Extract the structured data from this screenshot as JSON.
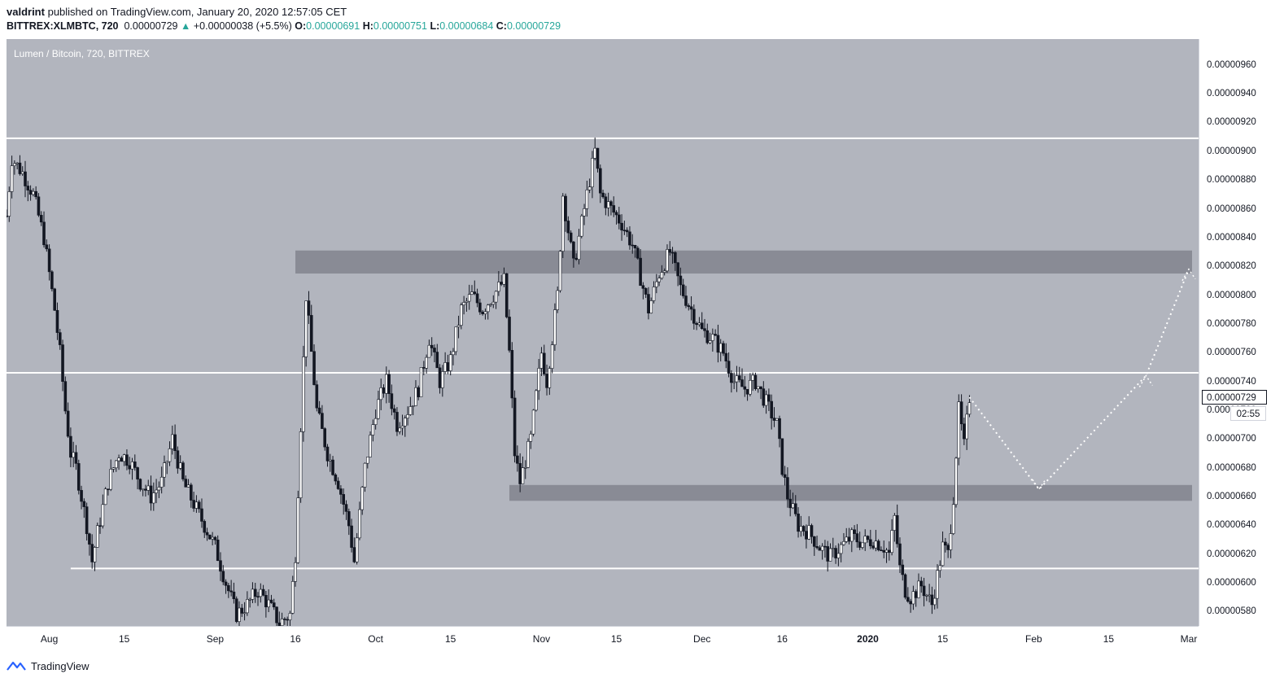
{
  "header": {
    "author": "valdrint",
    "published_text": "published on TradingView.com, January 20, 2020 12:57:05 CET",
    "symbol": "BITTREX:XLMBTC, 720",
    "last_price": "0.00000729",
    "change_arrow": "▲",
    "change": "+0.00000038 (+5.5%)",
    "o_label": "O:",
    "o_value": "0.00000691",
    "h_label": "H:",
    "h_value": "0.00000751",
    "l_label": "L:",
    "l_value": "0.00000684",
    "c_label": "C:",
    "c_value": "0.00000729"
  },
  "pane_title": "Lumen / Bitcoin, 720, BITTREX",
  "price_tag": "0.00000729",
  "countdown": "02:55",
  "footer_brand": "TradingView",
  "colors": {
    "background": "#b2b5be",
    "candles": "#131722",
    "levels": "#ffffff",
    "zones": "#7b7e87",
    "up_text": "#26a69a"
  },
  "chart_data": {
    "type": "candlestick",
    "title": "Lumen / Bitcoin, 720, BITTREX",
    "xlabel": "",
    "ylabel": "",
    "x_range": [
      "2019-07-24",
      "2020-03-01"
    ],
    "ylim": [
      5.7e-06,
      9.78e-06
    ],
    "x_ticks": [
      {
        "label": "Aug",
        "date": "2019-08-01"
      },
      {
        "label": "15",
        "date": "2019-08-15"
      },
      {
        "label": "Sep",
        "date": "2019-09-01"
      },
      {
        "label": "16",
        "date": "2019-09-16"
      },
      {
        "label": "Oct",
        "date": "2019-10-01"
      },
      {
        "label": "15",
        "date": "2019-10-15"
      },
      {
        "label": "Nov",
        "date": "2019-11-01"
      },
      {
        "label": "15",
        "date": "2019-11-15"
      },
      {
        "label": "Dec",
        "date": "2019-12-01"
      },
      {
        "label": "16",
        "date": "2019-12-16"
      },
      {
        "label": "2020",
        "date": "2020-01-01"
      },
      {
        "label": "15",
        "date": "2020-01-15"
      },
      {
        "label": "Feb",
        "date": "2020-02-01"
      },
      {
        "label": "15",
        "date": "2020-02-15"
      },
      {
        "label": "Mar",
        "date": "2020-03-01"
      }
    ],
    "y_ticks": [
      "0.00000960",
      "0.00000940",
      "0.00000920",
      "0.00000900",
      "0.00000880",
      "0.00000860",
      "0.00000840",
      "0.00000820",
      "0.00000800",
      "0.00000780",
      "0.00000760",
      "0.00000740",
      "0.00000720",
      "0.00000700",
      "0.00000680",
      "0.00000660",
      "0.00000640",
      "0.00000620",
      "0.00000600",
      "0.00000580"
    ],
    "price_path": [
      [
        "2019-07-24",
        8.55e-06
      ],
      [
        "2019-07-25",
        8.95e-06
      ],
      [
        "2019-07-27",
        8.85e-06
      ],
      [
        "2019-07-29",
        8.7e-06
      ],
      [
        "2019-07-31",
        8.4e-06
      ],
      [
        "2019-08-02",
        7.9e-06
      ],
      [
        "2019-08-03",
        7.6e-06
      ],
      [
        "2019-08-04",
        7.2e-06
      ],
      [
        "2019-08-05",
        6.9e-06
      ],
      [
        "2019-08-06",
        6.8e-06
      ],
      [
        "2019-08-08",
        6.4e-06
      ],
      [
        "2019-08-09",
        6.15e-06
      ],
      [
        "2019-08-10",
        6.35e-06
      ],
      [
        "2019-08-12",
        6.7e-06
      ],
      [
        "2019-08-14",
        6.9e-06
      ],
      [
        "2019-08-16",
        6.85e-06
      ],
      [
        "2019-08-18",
        6.7e-06
      ],
      [
        "2019-08-20",
        6.6e-06
      ],
      [
        "2019-08-22",
        6.7e-06
      ],
      [
        "2019-08-24",
        7e-06
      ],
      [
        "2019-08-26",
        6.7e-06
      ],
      [
        "2019-08-28",
        6.55e-06
      ],
      [
        "2019-08-30",
        6.4e-06
      ],
      [
        "2019-09-01",
        6.25e-06
      ],
      [
        "2019-09-03",
        6e-06
      ],
      [
        "2019-09-05",
        5.78e-06
      ],
      [
        "2019-09-07",
        5.85e-06
      ],
      [
        "2019-09-09",
        5.95e-06
      ],
      [
        "2019-09-11",
        5.85e-06
      ],
      [
        "2019-09-13",
        5.72e-06
      ],
      [
        "2019-09-15",
        5.78e-06
      ],
      [
        "2019-09-16",
        6.2e-06
      ],
      [
        "2019-09-17",
        7.1e-06
      ],
      [
        "2019-09-18",
        8e-06
      ],
      [
        "2019-09-19",
        7.6e-06
      ],
      [
        "2019-09-20",
        7.2e-06
      ],
      [
        "2019-09-22",
        6.9e-06
      ],
      [
        "2019-09-24",
        6.7e-06
      ],
      [
        "2019-09-26",
        6.4e-06
      ],
      [
        "2019-09-27",
        6.15e-06
      ],
      [
        "2019-09-29",
        6.8e-06
      ],
      [
        "2019-10-01",
        7.2e-06
      ],
      [
        "2019-10-03",
        7.4e-06
      ],
      [
        "2019-10-05",
        7.1e-06
      ],
      [
        "2019-10-07",
        7.2e-06
      ],
      [
        "2019-10-09",
        7.35e-06
      ],
      [
        "2019-10-11",
        7.7e-06
      ],
      [
        "2019-10-13",
        7.4e-06
      ],
      [
        "2019-10-15",
        7.55e-06
      ],
      [
        "2019-10-17",
        7.9e-06
      ],
      [
        "2019-10-19",
        8e-06
      ],
      [
        "2019-10-21",
        7.9e-06
      ],
      [
        "2019-10-23",
        8e-06
      ],
      [
        "2019-10-25",
        8.1e-06
      ],
      [
        "2019-10-26",
        7.6e-06
      ],
      [
        "2019-10-27",
        6.9e-06
      ],
      [
        "2019-10-28",
        6.7e-06
      ],
      [
        "2019-10-30",
        7e-06
      ],
      [
        "2019-11-01",
        7.6e-06
      ],
      [
        "2019-11-02",
        7.4e-06
      ],
      [
        "2019-11-04",
        8e-06
      ],
      [
        "2019-11-05",
        8.7e-06
      ],
      [
        "2019-11-07",
        8.2e-06
      ],
      [
        "2019-11-09",
        8.6e-06
      ],
      [
        "2019-11-11",
        9e-06
      ],
      [
        "2019-11-12",
        8.7e-06
      ],
      [
        "2019-11-14",
        8.6e-06
      ],
      [
        "2019-11-16",
        8.5e-06
      ],
      [
        "2019-11-18",
        8.35e-06
      ],
      [
        "2019-11-19",
        8.2e-06
      ],
      [
        "2019-11-21",
        7.9e-06
      ],
      [
        "2019-11-23",
        8.15e-06
      ],
      [
        "2019-11-25",
        8.3e-06
      ],
      [
        "2019-11-27",
        8.05e-06
      ],
      [
        "2019-11-29",
        7.9e-06
      ],
      [
        "2019-12-01",
        7.75e-06
      ],
      [
        "2019-12-03",
        7.7e-06
      ],
      [
        "2019-12-05",
        7.6e-06
      ],
      [
        "2019-12-07",
        7.4e-06
      ],
      [
        "2019-12-09",
        7.35e-06
      ],
      [
        "2019-12-11",
        7.4e-06
      ],
      [
        "2019-12-13",
        7.25e-06
      ],
      [
        "2019-12-15",
        7.1e-06
      ],
      [
        "2019-12-16",
        6.8e-06
      ],
      [
        "2019-12-17",
        6.6e-06
      ],
      [
        "2019-12-19",
        6.4e-06
      ],
      [
        "2019-12-21",
        6.35e-06
      ],
      [
        "2019-12-23",
        6.25e-06
      ],
      [
        "2019-12-25",
        6.18e-06
      ],
      [
        "2019-12-27",
        6.25e-06
      ],
      [
        "2019-12-29",
        6.32e-06
      ],
      [
        "2019-12-31",
        6.28e-06
      ],
      [
        "2020-01-02",
        6.3e-06
      ],
      [
        "2020-01-04",
        6.25e-06
      ],
      [
        "2020-01-05",
        6.2e-06
      ],
      [
        "2020-01-06",
        6.45e-06
      ],
      [
        "2020-01-07",
        6.1e-06
      ],
      [
        "2020-01-08",
        5.95e-06
      ],
      [
        "2020-01-09",
        5.9e-06
      ],
      [
        "2020-01-11",
        5.98e-06
      ],
      [
        "2020-01-13",
        5.85e-06
      ],
      [
        "2020-01-14",
        6.05e-06
      ],
      [
        "2020-01-15",
        6.25e-06
      ],
      [
        "2020-01-16",
        6.2e-06
      ],
      [
        "2020-01-17",
        6.6e-06
      ],
      [
        "2020-01-18",
        7.2e-06
      ],
      [
        "2020-01-19",
        6.95e-06
      ],
      [
        "2020-01-20",
        7.29e-06
      ]
    ],
    "horizontal_levels": [
      9.09e-06,
      7.46e-06,
      6.1e-06
    ],
    "zones": [
      {
        "from": 8.15e-06,
        "to": 8.31e-06
      },
      {
        "from": 6.57e-06,
        "to": 6.68e-06
      }
    ],
    "projection": [
      [
        "2020-01-20",
        7.29e-06
      ],
      [
        "2020-02-02",
        6.65e-06
      ],
      [
        "2020-02-22",
        7.44e-06
      ],
      [
        "2020-03-01",
        8.18e-06
      ]
    ]
  }
}
